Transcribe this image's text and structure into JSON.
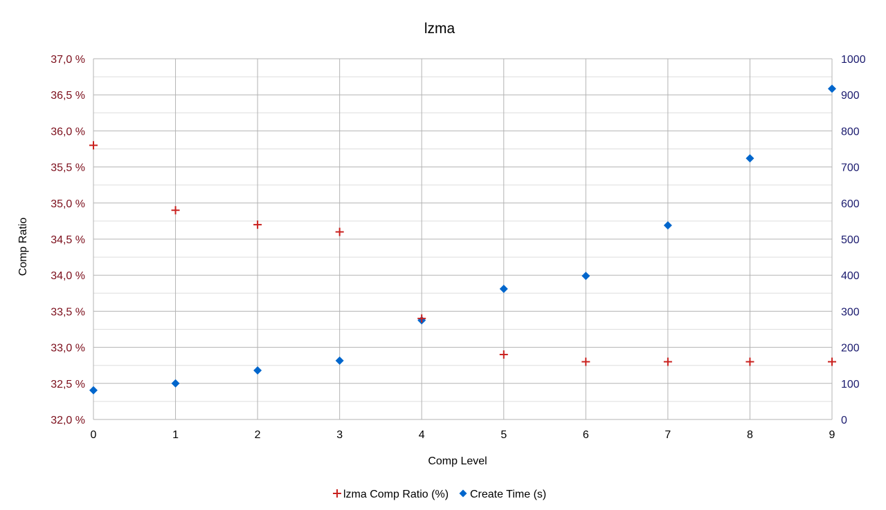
{
  "colors": {
    "series_ratio": "#c9211e",
    "series_time": "#0066cc",
    "left_axis_text": "#7b0d1a",
    "right_axis_text": "#1a1a6e",
    "grid_major": "#b3b3b3",
    "grid_minor": "#dddddd"
  },
  "chart_data": {
    "type": "scatter",
    "title": "lzma",
    "xlabel": "Comp Level",
    "ylabel": "Comp Ratio",
    "x": [
      0,
      1,
      2,
      3,
      4,
      5,
      6,
      7,
      8,
      9
    ],
    "xlim": [
      0,
      9
    ],
    "x_ticks": [
      "0",
      "1",
      "2",
      "3",
      "4",
      "5",
      "6",
      "7",
      "8",
      "9"
    ],
    "y_left": {
      "lim": [
        32.0,
        37.0
      ],
      "ticks": [
        32.0,
        32.5,
        33.0,
        33.5,
        34.0,
        34.5,
        35.0,
        35.5,
        36.0,
        36.5,
        37.0
      ],
      "tick_labels": [
        "32,0 %",
        "32,5 %",
        "33,0 %",
        "33,5 %",
        "34,0 %",
        "34,5 %",
        "35,0 %",
        "35,5 %",
        "36,0 %",
        "36,5 %",
        "37,0 %"
      ]
    },
    "y_right": {
      "lim": [
        0,
        1000
      ],
      "ticks": [
        0,
        100,
        200,
        300,
        400,
        500,
        600,
        700,
        800,
        900,
        1000
      ],
      "tick_labels": [
        "0",
        "100",
        "200",
        "300",
        "400",
        "500",
        "600",
        "700",
        "800",
        "900",
        "1000"
      ]
    },
    "series": [
      {
        "name": "lzma Comp Ratio (%)",
        "axis": "left",
        "marker": "plus",
        "values": [
          35.8,
          34.9,
          34.7,
          34.6,
          33.4,
          32.9,
          32.8,
          32.8,
          32.8,
          32.8
        ]
      },
      {
        "name": "Create Time (s)",
        "axis": "right",
        "marker": "diamond",
        "values": [
          81,
          100,
          136,
          163,
          275,
          362,
          398,
          538,
          724,
          917
        ]
      }
    ],
    "grid": true,
    "legend": "bottom"
  }
}
